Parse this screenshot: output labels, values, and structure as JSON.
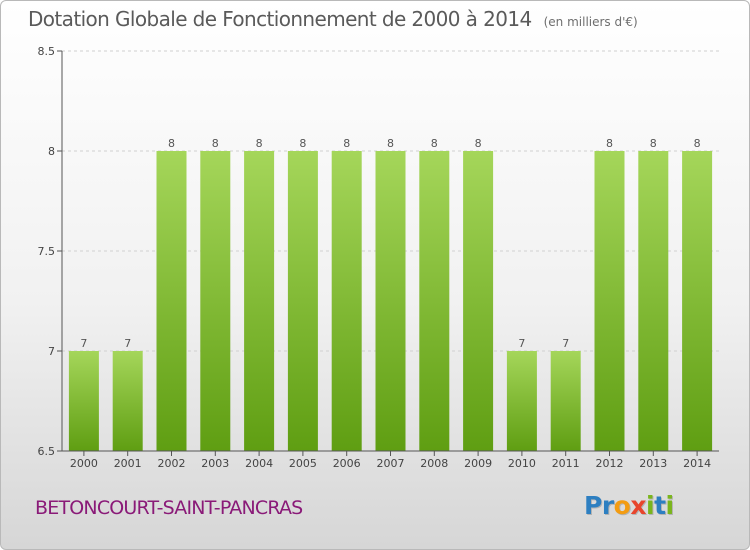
{
  "header": {
    "title": "Dotation Globale de Fonctionnement de 2000 à 2014",
    "subtitle": "(en milliers d'€)"
  },
  "footer": {
    "commune": "BETONCOURT-SAINT-PANCRAS",
    "logo_letters": [
      {
        "char": "P",
        "color": "#2d7fc1"
      },
      {
        "char": "r",
        "color": "#2d7fc1"
      },
      {
        "char": "o",
        "color": "#f39c12"
      },
      {
        "char": "x",
        "color": "#e8452c"
      },
      {
        "char": "i",
        "color": "#7ab51d"
      },
      {
        "char": "t",
        "color": "#2d7fc1"
      },
      {
        "char": "i",
        "color": "#7ab51d"
      }
    ]
  },
  "colors": {
    "bar_light": "#a5d65a",
    "bar_dark": "#5f9e12",
    "axis": "#555555",
    "grid": "#d0d0d0"
  },
  "chart_data": {
    "type": "bar",
    "title": "Dotation Globale de Fonctionnement de 2000 à 2014",
    "subtitle": "(en milliers d'€)",
    "xlabel": "",
    "ylabel": "",
    "ylim": [
      6.5,
      8.5
    ],
    "yticks": [
      "6.5",
      "7",
      "7.5",
      "8",
      "8.5"
    ],
    "grid": true,
    "categories": [
      "2000",
      "2001",
      "2002",
      "2003",
      "2004",
      "2005",
      "2006",
      "2007",
      "2008",
      "2009",
      "2010",
      "2011",
      "2012",
      "2013",
      "2014"
    ],
    "values": [
      7,
      7,
      8,
      8,
      8,
      8,
      8,
      8,
      8,
      8,
      7,
      7,
      8,
      8,
      8
    ],
    "data_labels": [
      "7",
      "7",
      "8",
      "8",
      "8",
      "8",
      "8",
      "8",
      "8",
      "8",
      "7",
      "7",
      "8",
      "8",
      "8"
    ]
  }
}
